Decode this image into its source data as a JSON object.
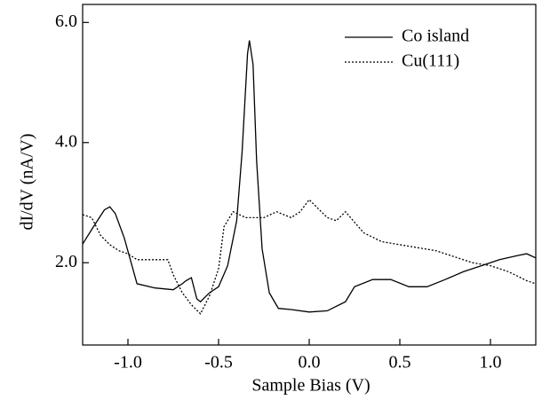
{
  "chart_data": {
    "type": "line",
    "x_label": "Sample Bias (V)",
    "y_label": "dI/dV (nA/V)",
    "xlim": [
      -1.25,
      1.25
    ],
    "ylim": [
      0.63,
      6.3
    ],
    "xticks": [
      {
        "value": -1,
        "label": "-1.0"
      },
      {
        "value": -0.5,
        "label": "-0.5"
      },
      {
        "value": 0,
        "label": "0.0"
      },
      {
        "value": 0.5,
        "label": "0.5"
      },
      {
        "value": 1,
        "label": "1.0"
      }
    ],
    "yticks": [
      {
        "value": 2,
        "label": "2.0"
      },
      {
        "value": 4,
        "label": "4.0"
      },
      {
        "value": 6,
        "label": "6.0"
      }
    ],
    "legend": "top-right",
    "series": [
      {
        "name": "Co island",
        "color": "#000000",
        "style": "solid",
        "x": [
          -1.25,
          -1.19,
          -1.13,
          -1.1,
          -1.07,
          -1.02,
          -0.95,
          -0.85,
          -0.75,
          -0.7,
          -0.68,
          -0.65,
          -0.62,
          -0.6,
          -0.55,
          -0.5,
          -0.45,
          -0.4,
          -0.37,
          -0.34,
          -0.33,
          -0.31,
          -0.29,
          -0.26,
          -0.22,
          -0.17,
          -0.1,
          0.0,
          0.1,
          0.2,
          0.25,
          0.35,
          0.45,
          0.55,
          0.65,
          0.75,
          0.85,
          0.95,
          1.05,
          1.15,
          1.2,
          1.25
        ],
        "values": [
          2.31,
          2.6,
          2.88,
          2.93,
          2.82,
          2.41,
          1.65,
          1.58,
          1.55,
          1.65,
          1.7,
          1.75,
          1.4,
          1.35,
          1.5,
          1.6,
          1.95,
          2.7,
          3.85,
          5.48,
          5.7,
          5.3,
          3.7,
          2.23,
          1.5,
          1.24,
          1.22,
          1.18,
          1.2,
          1.35,
          1.6,
          1.72,
          1.72,
          1.6,
          1.6,
          1.72,
          1.85,
          1.95,
          2.05,
          2.12,
          2.15,
          2.08
        ]
      },
      {
        "name": "Cu(111)",
        "color": "#000000",
        "style": "dotted",
        "x": [
          -1.25,
          -1.2,
          -1.15,
          -1.1,
          -1.05,
          -1.0,
          -0.95,
          -0.85,
          -0.78,
          -0.75,
          -0.7,
          -0.65,
          -0.6,
          -0.55,
          -0.5,
          -0.47,
          -0.42,
          -0.35,
          -0.25,
          -0.18,
          -0.1,
          -0.05,
          0.0,
          0.05,
          0.1,
          0.15,
          0.2,
          0.3,
          0.4,
          0.5,
          0.6,
          0.7,
          0.8,
          0.9,
          1.0,
          1.1,
          1.2,
          1.25
        ],
        "values": [
          2.8,
          2.75,
          2.45,
          2.3,
          2.2,
          2.15,
          2.05,
          2.05,
          2.05,
          1.8,
          1.5,
          1.3,
          1.15,
          1.45,
          1.9,
          2.6,
          2.85,
          2.75,
          2.75,
          2.85,
          2.75,
          2.85,
          3.05,
          2.9,
          2.75,
          2.7,
          2.85,
          2.5,
          2.35,
          2.3,
          2.25,
          2.2,
          2.1,
          2.0,
          1.95,
          1.85,
          1.7,
          1.65
        ]
      }
    ]
  }
}
